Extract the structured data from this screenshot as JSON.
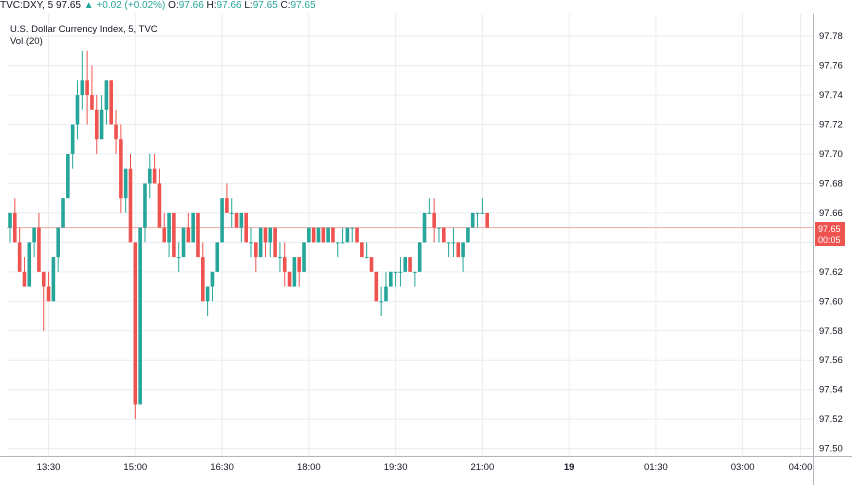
{
  "header": {
    "symbol": "TVC:DXY, 5",
    "last": "97.65",
    "arrow": "▲",
    "change": "+0.02 (+0.02%)",
    "o_label": "O:",
    "o_value": "97.66",
    "h_label": "H:",
    "h_value": "97.66",
    "l_label": "L:",
    "l_value": "97.65",
    "c_label": "C:",
    "c_value": "97.65"
  },
  "chart_title": "U.S. Dollar Currency Index, 5, TVC",
  "volume_label": "Vol (20)",
  "price_tag": {
    "value": "97.65",
    "countdown": "00:05"
  },
  "colors": {
    "up": "#26a69a",
    "down": "#ef5350",
    "grid": "#e9ecf2",
    "axis": "#b2b5be",
    "price_line": "#f2a7a6"
  },
  "chart_data": {
    "type": "candlestick",
    "title": "U.S. Dollar Currency Index, 5, TVC",
    "ylim": [
      97.495,
      97.795
    ],
    "y_ticks": [
      97.5,
      97.52,
      97.54,
      97.56,
      97.58,
      97.6,
      97.62,
      97.64,
      97.66,
      97.68,
      97.7,
      97.72,
      97.74,
      97.76,
      97.78
    ],
    "y_tick_labels": [
      "97.50",
      "97.52",
      "97.54",
      "97.56",
      "97.58",
      "97.60",
      "97.62",
      "97.64",
      "97.66",
      "97.68",
      "97.70",
      "97.72",
      "97.74",
      "97.76",
      "97.78"
    ],
    "x_ticks": [
      {
        "label": "13:30",
        "bar": 8,
        "bold": false
      },
      {
        "label": "15:00",
        "bar": 26,
        "bold": false
      },
      {
        "label": "16:30",
        "bar": 44,
        "bold": false
      },
      {
        "label": "18:00",
        "bar": 62,
        "bold": false
      },
      {
        "label": "19:30",
        "bar": 80,
        "bold": false
      },
      {
        "label": "21:00",
        "bar": 98,
        "bold": false
      },
      {
        "label": "19",
        "bar": 116,
        "bold": true
      },
      {
        "label": "01:30",
        "bar": 134,
        "bold": false
      },
      {
        "label": "03:00",
        "bar": 152,
        "bold": false
      },
      {
        "label": "04:00",
        "bar": 164,
        "bold": false
      }
    ],
    "last_price": 97.65,
    "candles": [
      [
        97.65,
        97.66,
        97.64,
        97.66
      ],
      [
        97.66,
        97.67,
        97.64,
        97.64
      ],
      [
        97.64,
        97.65,
        97.62,
        97.62
      ],
      [
        97.62,
        97.63,
        97.61,
        97.61
      ],
      [
        97.61,
        97.64,
        97.61,
        97.64
      ],
      [
        97.64,
        97.65,
        97.63,
        97.65
      ],
      [
        97.65,
        97.66,
        97.62,
        97.62
      ],
      [
        97.62,
        97.62,
        97.58,
        97.61
      ],
      [
        97.61,
        97.62,
        97.6,
        97.6
      ],
      [
        97.6,
        97.63,
        97.6,
        97.63
      ],
      [
        97.63,
        97.65,
        97.62,
        97.65
      ],
      [
        97.65,
        97.67,
        97.65,
        97.67
      ],
      [
        97.67,
        97.7,
        97.67,
        97.7
      ],
      [
        97.7,
        97.72,
        97.69,
        97.72
      ],
      [
        97.72,
        97.75,
        97.71,
        97.74
      ],
      [
        97.74,
        97.77,
        97.73,
        97.75
      ],
      [
        97.75,
        97.77,
        97.72,
        97.74
      ],
      [
        97.74,
        97.76,
        97.73,
        97.73
      ],
      [
        97.73,
        97.74,
        97.7,
        97.71
      ],
      [
        97.71,
        97.74,
        97.71,
        97.73
      ],
      [
        97.73,
        97.75,
        97.72,
        97.75
      ],
      [
        97.75,
        97.75,
        97.72,
        97.72
      ],
      [
        97.72,
        97.73,
        97.7,
        97.71
      ],
      [
        97.71,
        97.72,
        97.66,
        97.67
      ],
      [
        97.67,
        97.69,
        97.66,
        97.69
      ],
      [
        97.69,
        97.7,
        97.64,
        97.64
      ],
      [
        97.64,
        97.64,
        97.52,
        97.53
      ],
      [
        97.53,
        97.65,
        97.53,
        97.65
      ],
      [
        97.65,
        97.68,
        97.64,
        97.68
      ],
      [
        97.68,
        97.7,
        97.67,
        97.69
      ],
      [
        97.69,
        97.7,
        97.68,
        97.68
      ],
      [
        97.68,
        97.69,
        97.65,
        97.65
      ],
      [
        97.65,
        97.66,
        97.64,
        97.64
      ],
      [
        97.64,
        97.66,
        97.63,
        97.66
      ],
      [
        97.66,
        97.66,
        97.63,
        97.63
      ],
      [
        97.63,
        97.64,
        97.62,
        97.63
      ],
      [
        97.63,
        97.65,
        97.63,
        97.65
      ],
      [
        97.65,
        97.66,
        97.64,
        97.64
      ],
      [
        97.64,
        97.66,
        97.64,
        97.66
      ],
      [
        97.66,
        97.66,
        97.63,
        97.63
      ],
      [
        97.63,
        97.64,
        97.6,
        97.6
      ],
      [
        97.6,
        97.61,
        97.59,
        97.61
      ],
      [
        97.61,
        97.62,
        97.6,
        97.62
      ],
      [
        97.62,
        97.64,
        97.62,
        97.64
      ],
      [
        97.64,
        97.67,
        97.64,
        97.67
      ],
      [
        97.67,
        97.68,
        97.66,
        97.66
      ],
      [
        97.66,
        97.67,
        97.65,
        97.66
      ],
      [
        97.66,
        97.66,
        97.65,
        97.65
      ],
      [
        97.65,
        97.66,
        97.64,
        97.66
      ],
      [
        97.66,
        97.66,
        97.64,
        97.64
      ],
      [
        97.64,
        97.65,
        97.63,
        97.64
      ],
      [
        97.64,
        97.64,
        97.62,
        97.63
      ],
      [
        97.63,
        97.65,
        97.63,
        97.65
      ],
      [
        97.65,
        97.65,
        97.63,
        97.64
      ],
      [
        97.64,
        97.65,
        97.63,
        97.65
      ],
      [
        97.65,
        97.65,
        97.63,
        97.63
      ],
      [
        97.63,
        97.64,
        97.62,
        97.63
      ],
      [
        97.63,
        97.64,
        97.61,
        97.62
      ],
      [
        97.62,
        97.62,
        97.61,
        97.61
      ],
      [
        97.61,
        97.63,
        97.61,
        97.63
      ],
      [
        97.63,
        97.63,
        97.61,
        97.62
      ],
      [
        97.62,
        97.64,
        97.62,
        97.64
      ],
      [
        97.64,
        97.65,
        97.64,
        97.65
      ],
      [
        97.65,
        97.65,
        97.64,
        97.64
      ],
      [
        97.64,
        97.65,
        97.64,
        97.65
      ],
      [
        97.65,
        97.65,
        97.64,
        97.64
      ],
      [
        97.64,
        97.65,
        97.64,
        97.65
      ],
      [
        97.65,
        97.65,
        97.64,
        97.64
      ],
      [
        97.64,
        97.64,
        97.63,
        97.64
      ],
      [
        97.64,
        97.65,
        97.64,
        97.64
      ],
      [
        97.64,
        97.65,
        97.64,
        97.65
      ],
      [
        97.65,
        97.65,
        97.64,
        97.65
      ],
      [
        97.65,
        97.65,
        97.64,
        97.64
      ],
      [
        97.64,
        97.64,
        97.63,
        97.63
      ],
      [
        97.63,
        97.64,
        97.63,
        97.63
      ],
      [
        97.63,
        97.63,
        97.62,
        97.62
      ],
      [
        97.62,
        97.62,
        97.6,
        97.6
      ],
      [
        97.6,
        97.61,
        97.59,
        97.6
      ],
      [
        97.6,
        97.62,
        97.6,
        97.61
      ],
      [
        97.61,
        97.62,
        97.61,
        97.62
      ],
      [
        97.62,
        97.62,
        97.61,
        97.62
      ],
      [
        97.62,
        97.63,
        97.61,
        97.62
      ],
      [
        97.62,
        97.63,
        97.62,
        97.63
      ],
      [
        97.63,
        97.63,
        97.62,
        97.62
      ],
      [
        97.62,
        97.62,
        97.61,
        97.62
      ],
      [
        97.62,
        97.64,
        97.62,
        97.64
      ],
      [
        97.64,
        97.66,
        97.64,
        97.66
      ],
      [
        97.66,
        97.67,
        97.66,
        97.66
      ],
      [
        97.66,
        97.67,
        97.64,
        97.65
      ],
      [
        97.65,
        97.65,
        97.64,
        97.65
      ],
      [
        97.65,
        97.65,
        97.64,
        97.64
      ],
      [
        97.64,
        97.64,
        97.63,
        97.64
      ],
      [
        97.64,
        97.65,
        97.63,
        97.64
      ],
      [
        97.64,
        97.64,
        97.63,
        97.63
      ],
      [
        97.63,
        97.64,
        97.62,
        97.64
      ],
      [
        97.64,
        97.65,
        97.64,
        97.65
      ],
      [
        97.65,
        97.66,
        97.65,
        97.66
      ],
      [
        97.66,
        97.66,
        97.65,
        97.66
      ],
      [
        97.66,
        97.67,
        97.66,
        97.66
      ],
      [
        97.66,
        97.66,
        97.65,
        97.65
      ]
    ]
  }
}
